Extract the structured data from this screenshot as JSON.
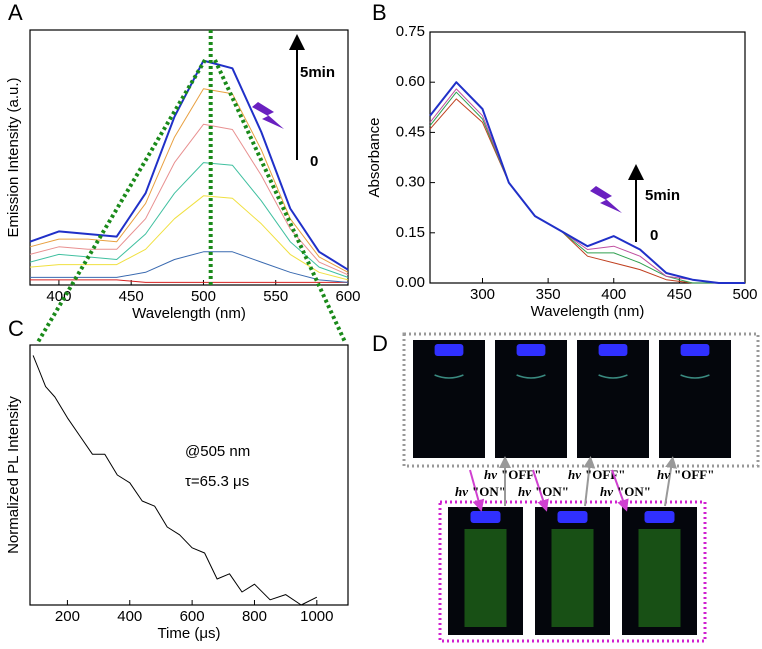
{
  "chart_data": [
    {
      "type": "line",
      "panel": "A",
      "xlabel": "Wavelength (nm)",
      "ylabel": "Emission Intensity (a.u.)",
      "xlim": [
        380,
        600
      ],
      "xticks": [
        400,
        450,
        500,
        550,
        600
      ],
      "ylim": [
        0,
        1
      ],
      "vline": 505,
      "annotations": [
        "5min",
        "0"
      ],
      "x": [
        380,
        400,
        420,
        440,
        460,
        480,
        500,
        520,
        540,
        560,
        580,
        600
      ],
      "series": [
        {
          "color": "#d62020",
          "values": [
            0.02,
            0.02,
            0.02,
            0.02,
            0.01,
            0.01,
            0.01,
            0.01,
            0.01,
            0.01,
            0.01,
            0.01
          ]
        },
        {
          "color": "#3a6ab0",
          "values": [
            0.03,
            0.03,
            0.03,
            0.03,
            0.05,
            0.1,
            0.13,
            0.13,
            0.09,
            0.05,
            0.02,
            0.01
          ]
        },
        {
          "color": "#f0e040",
          "values": [
            0.07,
            0.08,
            0.08,
            0.08,
            0.14,
            0.26,
            0.35,
            0.34,
            0.24,
            0.12,
            0.05,
            0.02
          ]
        },
        {
          "color": "#40c0a0",
          "values": [
            0.09,
            0.12,
            0.11,
            0.1,
            0.2,
            0.36,
            0.48,
            0.47,
            0.33,
            0.17,
            0.07,
            0.03
          ]
        },
        {
          "color": "#e89090",
          "values": [
            0.12,
            0.15,
            0.14,
            0.14,
            0.26,
            0.48,
            0.63,
            0.61,
            0.43,
            0.22,
            0.09,
            0.04
          ]
        },
        {
          "color": "#e8a040",
          "values": [
            0.15,
            0.18,
            0.18,
            0.17,
            0.32,
            0.58,
            0.77,
            0.75,
            0.53,
            0.26,
            0.11,
            0.05
          ]
        },
        {
          "color": "#2030c8",
          "values": [
            0.17,
            0.21,
            0.2,
            0.19,
            0.36,
            0.66,
            0.88,
            0.85,
            0.6,
            0.3,
            0.13,
            0.06
          ]
        }
      ]
    },
    {
      "type": "line",
      "panel": "B",
      "xlabel": "Wavelength (nm)",
      "ylabel": "Absorbance",
      "xlim": [
        260,
        500
      ],
      "xticks": [
        300,
        350,
        400,
        450,
        500
      ],
      "ylim": [
        0,
        0.75
      ],
      "yticks": [
        {
          "value": 0,
          "label": "0.00"
        },
        {
          "value": 0.15,
          "label": "0.15"
        },
        {
          "value": 0.3,
          "label": "0.30"
        },
        {
          "value": 0.45,
          "label": "0.45"
        },
        {
          "value": 0.6,
          "label": "0.60"
        },
        {
          "value": 0.75,
          "label": "0.75"
        }
      ],
      "annotations": [
        "5min",
        "0"
      ],
      "x": [
        260,
        280,
        300,
        320,
        340,
        360,
        380,
        400,
        420,
        440,
        460,
        480,
        500
      ],
      "series": [
        {
          "color": "#c04020",
          "values": [
            0.46,
            0.55,
            0.48,
            0.3,
            0.2,
            0.155,
            0.08,
            0.06,
            0.04,
            0.01,
            0,
            0,
            0
          ]
        },
        {
          "color": "#30a050",
          "values": [
            0.47,
            0.57,
            0.49,
            0.3,
            0.2,
            0.155,
            0.09,
            0.09,
            0.06,
            0.02,
            0,
            0,
            0
          ]
        },
        {
          "color": "#c050a0",
          "values": [
            0.48,
            0.58,
            0.5,
            0.3,
            0.2,
            0.155,
            0.1,
            0.11,
            0.08,
            0.02,
            0.01,
            0,
            0
          ]
        },
        {
          "color": "#2030c8",
          "values": [
            0.5,
            0.6,
            0.52,
            0.3,
            0.2,
            0.155,
            0.11,
            0.14,
            0.1,
            0.03,
            0.01,
            0,
            0
          ]
        }
      ]
    },
    {
      "type": "line",
      "panel": "C",
      "xlabel": "Time (μs)",
      "ylabel": "Normalized PL Intensity",
      "xlim": [
        80,
        1100
      ],
      "xticks": [
        200,
        400,
        600,
        800,
        1000
      ],
      "ylim": [
        0,
        1
      ],
      "annotations": [
        "@505 nm",
        "τ=65.3 μs"
      ],
      "x": [
        90,
        110,
        130,
        160,
        200,
        240,
        280,
        320,
        360,
        400,
        440,
        480,
        520,
        560,
        600,
        640,
        680,
        720,
        760,
        800,
        850,
        900,
        950,
        1000
      ],
      "series": [
        {
          "color": "#000000",
          "values": [
            0.96,
            0.9,
            0.84,
            0.8,
            0.72,
            0.65,
            0.58,
            0.58,
            0.5,
            0.47,
            0.4,
            0.38,
            0.3,
            0.27,
            0.22,
            0.2,
            0.1,
            0.12,
            0.05,
            0.08,
            0.02,
            0.04,
            0.0,
            0.03
          ]
        }
      ]
    }
  ],
  "panel_d": {
    "label": "D",
    "on_steps": [
      {
        "light": "hν",
        "state": "\"ON\""
      },
      {
        "light": "hν",
        "state": "\"ON\""
      },
      {
        "light": "hν",
        "state": "\"ON\""
      }
    ],
    "off_steps": [
      {
        "light": "hν",
        "state": "\"OFF\""
      },
      {
        "light": "hν",
        "state": "\"OFF\""
      },
      {
        "light": "hν",
        "state": "\"OFF\""
      }
    ]
  }
}
